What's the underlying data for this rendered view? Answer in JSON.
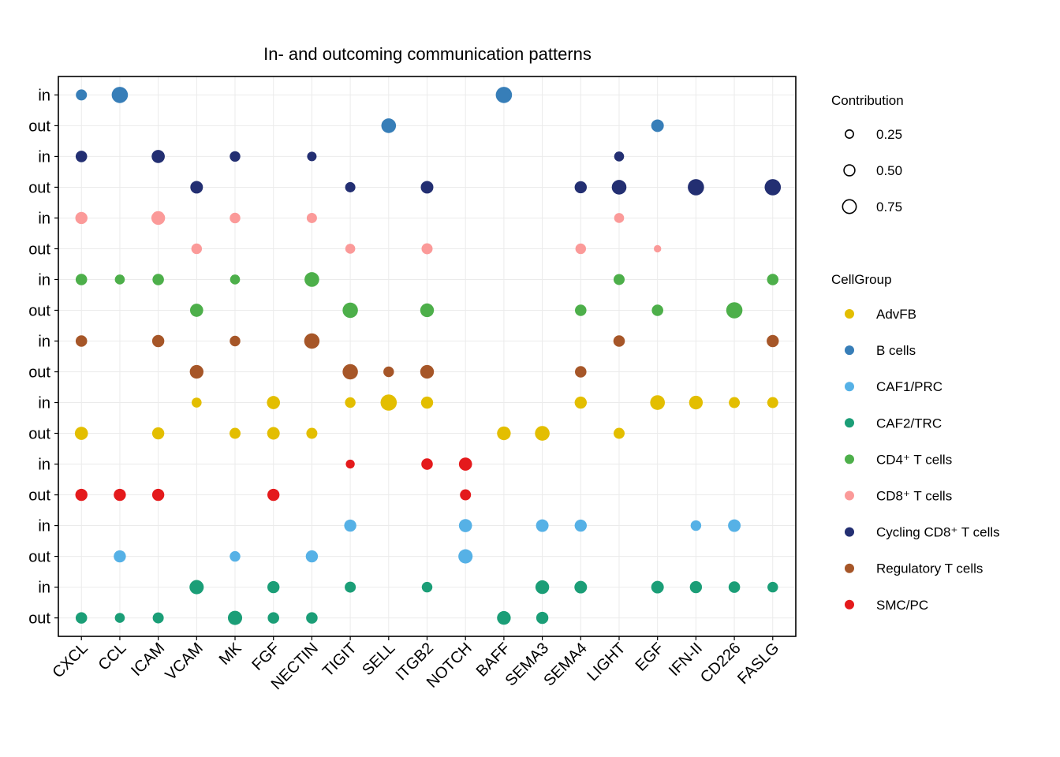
{
  "chart_data": {
    "type": "scatter",
    "subtype": "dot-plot",
    "title": "In- and outcoming communication patterns",
    "xlabel": "",
    "ylabel": "",
    "grid": true,
    "x_categories": [
      "CXCL",
      "CCL",
      "ICAM",
      "VCAM",
      "MK",
      "FGF",
      "NECTIN",
      "TIGIT",
      "SELL",
      "ITGB2",
      "NOTCH",
      "BAFF",
      "SEMA3",
      "SEMA4",
      "LIGHT",
      "EGF",
      "IFN-II",
      "CD226",
      "FASLG"
    ],
    "size_legend": {
      "title": "Contribution",
      "placement": "right-top",
      "breaks": [
        0.25,
        0.5,
        0.75
      ],
      "labels": [
        "0.25",
        "0.50",
        "0.75"
      ]
    },
    "color_legend": {
      "title": "CellGroup",
      "placement": "right",
      "groups": [
        {
          "name": "AdvFB",
          "color": "#E3BE00"
        },
        {
          "name": "B cells",
          "color": "#377EB8"
        },
        {
          "name": "CAF1/PRC",
          "color": "#56B1E6"
        },
        {
          "name": "CAF2/TRC",
          "color": "#1B9E77"
        },
        {
          "name": "CD4⁺ T cells",
          "color": "#4DAF4A"
        },
        {
          "name": "CD8⁺ T cells",
          "color": "#FB9A99"
        },
        {
          "name": "Cycling CD8⁺ T cells",
          "color": "#232F72"
        },
        {
          "name": "Regulatory T cells",
          "color": "#A65628"
        },
        {
          "name": "SMC/PC",
          "color": "#E41A1C"
        }
      ]
    },
    "rows": [
      {
        "direction": "in",
        "group": "B cells",
        "values": {
          "CXCL": 0.4,
          "CCL": 0.87,
          "BAFF": 0.87
        }
      },
      {
        "direction": "out",
        "group": "B cells",
        "values": {
          "SELL": 0.73,
          "EGF": 0.54
        }
      },
      {
        "direction": "in",
        "group": "Cycling CD8⁺ T cells",
        "values": {
          "CXCL": 0.44,
          "ICAM": 0.59,
          "MK": 0.36,
          "NECTIN": 0.26,
          "LIGHT": 0.3
        }
      },
      {
        "direction": "out",
        "group": "Cycling CD8⁺ T cells",
        "values": {
          "VCAM": 0.54,
          "TIGIT": 0.33,
          "ITGB2": 0.54,
          "SEMA4": 0.5,
          "LIGHT": 0.73,
          "IFN-II": 0.87,
          "FASLG": 0.87
        }
      },
      {
        "direction": "in",
        "group": "CD8⁺ T cells",
        "values": {
          "CXCL": 0.5,
          "ICAM": 0.64,
          "MK": 0.36,
          "NECTIN": 0.33,
          "LIGHT": 0.3
        }
      },
      {
        "direction": "out",
        "group": "CD8⁺ T cells",
        "values": {
          "VCAM": 0.36,
          "TIGIT": 0.3,
          "ITGB2": 0.4,
          "SEMA4": 0.36,
          "EGF": 0.07
        }
      },
      {
        "direction": "in",
        "group": "CD4⁺ T cells",
        "values": {
          "CXCL": 0.44,
          "CCL": 0.3,
          "ICAM": 0.44,
          "MK": 0.3,
          "NECTIN": 0.73,
          "LIGHT": 0.4,
          "FASLG": 0.44
        }
      },
      {
        "direction": "out",
        "group": "CD4⁺ T cells",
        "values": {
          "VCAM": 0.59,
          "TIGIT": 0.79,
          "ITGB2": 0.64,
          "SEMA4": 0.44,
          "EGF": 0.44,
          "CD226": 0.87
        }
      },
      {
        "direction": "in",
        "group": "Regulatory T cells",
        "values": {
          "CXCL": 0.44,
          "ICAM": 0.5,
          "MK": 0.36,
          "NECTIN": 0.79,
          "LIGHT": 0.44,
          "FASLG": 0.5
        }
      },
      {
        "direction": "out",
        "group": "Regulatory T cells",
        "values": {
          "VCAM": 0.64,
          "TIGIT": 0.79,
          "SELL": 0.36,
          "ITGB2": 0.64,
          "SEMA4": 0.44
        }
      },
      {
        "direction": "in",
        "group": "AdvFB",
        "values": {
          "VCAM": 0.3,
          "FGF": 0.59,
          "TIGIT": 0.36,
          "SELL": 0.87,
          "ITGB2": 0.5,
          "SEMA4": 0.5,
          "EGF": 0.73,
          "IFN-II": 0.64,
          "CD226": 0.4,
          "FASLG": 0.4
        }
      },
      {
        "direction": "out",
        "group": "AdvFB",
        "values": {
          "CXCL": 0.59,
          "ICAM": 0.5,
          "MK": 0.4,
          "FGF": 0.54,
          "NECTIN": 0.4,
          "BAFF": 0.64,
          "SEMA3": 0.73,
          "LIGHT": 0.4
        }
      },
      {
        "direction": "in",
        "group": "SMC/PC",
        "values": {
          "TIGIT": 0.21,
          "ITGB2": 0.44,
          "NOTCH": 0.59
        }
      },
      {
        "direction": "out",
        "group": "SMC/PC",
        "values": {
          "CXCL": 0.5,
          "CCL": 0.5,
          "ICAM": 0.5,
          "FGF": 0.5,
          "NOTCH": 0.4
        }
      },
      {
        "direction": "in",
        "group": "CAF1/PRC",
        "values": {
          "TIGIT": 0.5,
          "NOTCH": 0.59,
          "SEMA3": 0.54,
          "SEMA4": 0.5,
          "IFN-II": 0.36,
          "CD226": 0.54
        }
      },
      {
        "direction": "out",
        "group": "CAF1/PRC",
        "values": {
          "CCL": 0.5,
          "MK": 0.36,
          "NECTIN": 0.5,
          "NOTCH": 0.69
        }
      },
      {
        "direction": "in",
        "group": "CAF2/TRC",
        "values": {
          "VCAM": 0.69,
          "FGF": 0.5,
          "TIGIT": 0.4,
          "ITGB2": 0.36,
          "SEMA3": 0.64,
          "SEMA4": 0.54,
          "EGF": 0.54,
          "IFN-II": 0.5,
          "CD226": 0.44,
          "FASLG": 0.36
        }
      },
      {
        "direction": "out",
        "group": "CAF2/TRC",
        "values": {
          "CXCL": 0.44,
          "CCL": 0.3,
          "ICAM": 0.4,
          "MK": 0.69,
          "FGF": 0.44,
          "NECTIN": 0.44,
          "BAFF": 0.64,
          "SEMA3": 0.5
        }
      }
    ]
  }
}
